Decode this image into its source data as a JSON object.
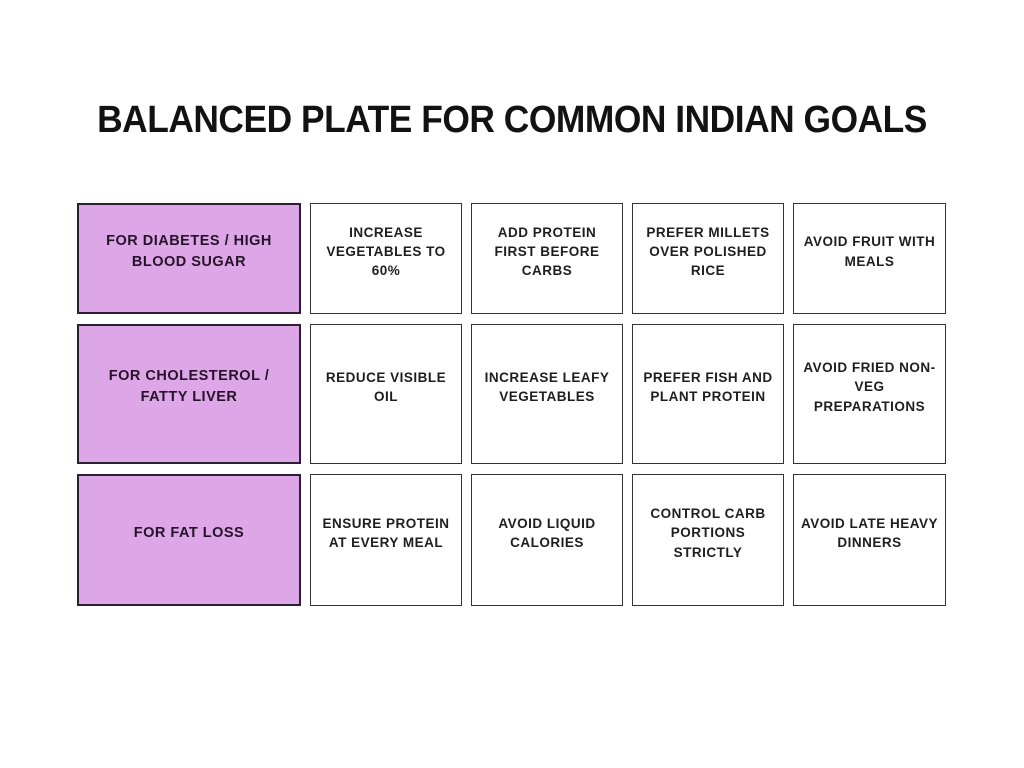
{
  "title": "BALANCED PLATE FOR COMMON INDIAN GOALS",
  "colors": {
    "background": "#ffffff",
    "title_text": "#121212",
    "row_header_bg": "#dca6e7",
    "row_header_border": "#2d1f33",
    "row_header_text": "#261329",
    "cell_border": "#333333",
    "cell_text": "#1e1e1e"
  },
  "table": {
    "rows": [
      {
        "header": "FOR DIABETES / HIGH BLOOD SUGAR",
        "cells": [
          "INCREASE VEGETABLES TO 60%",
          "ADD PROTEIN FIRST BEFORE CARBS",
          "PREFER MILLETS OVER POLISHED RICE",
          "AVOID FRUIT WITH MEALS"
        ]
      },
      {
        "header": "FOR CHOLESTEROL / FATTY LIVER",
        "cells": [
          "REDUCE VISIBLE OIL",
          "INCREASE LEAFY VEGETABLES",
          "PREFER FISH AND PLANT PROTEIN",
          "AVOID FRIED NON-VEG PREPARATIONS"
        ]
      },
      {
        "header": "FOR FAT LOSS",
        "cells": [
          "ENSURE PROTEIN AT EVERY MEAL",
          "AVOID LIQUID CALORIES",
          "CONTROL CARB PORTIONS STRICTLY",
          "AVOID LATE HEAVY DINNERS"
        ]
      }
    ]
  }
}
